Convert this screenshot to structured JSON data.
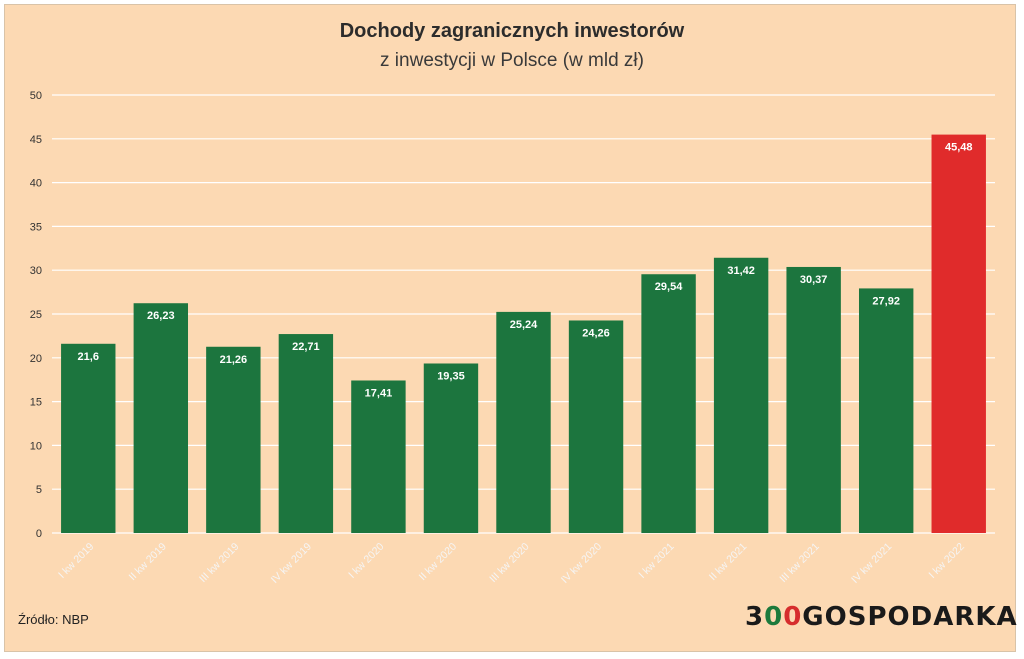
{
  "colors": {
    "background": "#fcd9b3",
    "bar": "#1c753e",
    "bar_highlight": "#e02b2b",
    "grid": "#ffffff",
    "axis_text": "#333333",
    "tick_label": "#f5f5f5"
  },
  "chart_data": {
    "type": "bar",
    "title": "Dochody zagranicznych inwestorów",
    "subtitle": "z inwestycji w Polsce (w mld zł)",
    "xlabel": "",
    "ylabel": "",
    "ylim": [
      0,
      50
    ],
    "yticks": [
      0,
      5,
      10,
      15,
      20,
      25,
      30,
      35,
      40,
      45,
      50
    ],
    "categories": [
      "I kw 2019",
      "II kw 2019",
      "III kw 2019",
      "IV kw 2019",
      "I kw 2020",
      "II kw 2020",
      "III kw 2020",
      "IV kw 2020",
      "I kw 2021",
      "II kw 2021",
      "III kw 2021",
      "IV kw 2021",
      "I kw 2022"
    ],
    "values": [
      21.6,
      26.23,
      21.26,
      22.71,
      17.41,
      19.35,
      25.24,
      24.26,
      29.54,
      31.42,
      30.37,
      27.92,
      45.48
    ],
    "value_labels": [
      "21,6",
      "26,23",
      "21,26",
      "22,71",
      "17,41",
      "19,35",
      "25,24",
      "24,26",
      "29,54",
      "31,42",
      "30,37",
      "27,92",
      "45,48"
    ],
    "highlight_index": 12,
    "grid": true,
    "legend": "none"
  },
  "footer": {
    "source": "Źródło: NBP",
    "logo_digit1": "3",
    "logo_digit2": "0",
    "logo_digit3": "0",
    "logo_text": "GOSPODARKA"
  }
}
